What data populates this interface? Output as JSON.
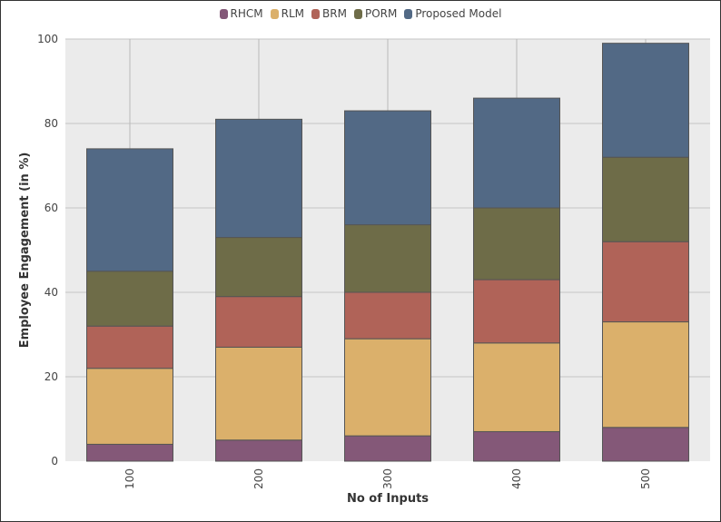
{
  "chart_data": {
    "type": "bar",
    "stacked": true,
    "xlabel": "No of Inputs",
    "ylabel": "Employee Engagement (in %)",
    "categories": [
      "100",
      "200",
      "300",
      "400",
      "500"
    ],
    "ylim": [
      0,
      100
    ],
    "yticks": [
      0,
      20,
      40,
      60,
      80,
      100
    ],
    "grid": true,
    "legend_position": "top-center",
    "series": [
      {
        "name": "RHCM",
        "color": "#845878",
        "values": [
          4,
          5,
          6,
          7,
          8
        ]
      },
      {
        "name": "RLM",
        "color": "#dbb06b",
        "values": [
          18,
          22,
          23,
          21,
          25
        ]
      },
      {
        "name": "BRM",
        "color": "#b06358",
        "values": [
          10,
          12,
          11,
          15,
          19
        ]
      },
      {
        "name": "PORM",
        "color": "#6e6c48",
        "values": [
          13,
          14,
          16,
          17,
          20
        ]
      },
      {
        "name": "Proposed Model",
        "color": "#526985",
        "values": [
          29,
          28,
          27,
          26,
          27
        ]
      }
    ]
  }
}
